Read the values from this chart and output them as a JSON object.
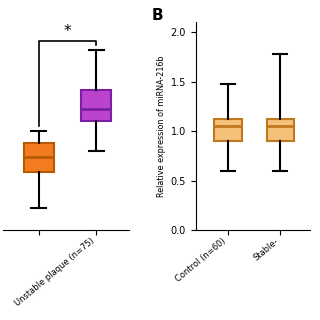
{
  "panel_A": {
    "boxes": [
      {
        "label": "",
        "q1": 0.68,
        "median": 0.82,
        "q3": 0.96,
        "whisker_low": 0.32,
        "whisker_high": 1.08,
        "color": "#F47C20",
        "edge_color": "#B85A00"
      },
      {
        "label": "Unstable plaque (n=75)",
        "q1": 1.18,
        "median": 1.3,
        "q3": 1.48,
        "whisker_low": 0.88,
        "whisker_high": 1.88,
        "color": "#BB44CC",
        "edge_color": "#7B1FA2"
      }
    ],
    "significance": "*",
    "ylim": [
      0.1,
      2.15
    ],
    "yticks": []
  },
  "panel_B": {
    "ylabel": "Relative expression of miRNA-216b",
    "boxes": [
      {
        "label": "Control (n=60)",
        "q1": 0.9,
        "median": 1.05,
        "q3": 1.12,
        "whisker_low": 0.6,
        "whisker_high": 1.48,
        "color": "#F5C07A",
        "edge_color": "#C07820"
      },
      {
        "label": "Stable-",
        "q1": 0.9,
        "median": 1.05,
        "q3": 1.12,
        "whisker_low": 0.6,
        "whisker_high": 1.78,
        "color": "#F5C07A",
        "edge_color": "#C07820"
      }
    ],
    "ylim": [
      0.0,
      2.1
    ],
    "yticks": [
      0.0,
      0.5,
      1.0,
      1.5,
      2.0
    ]
  },
  "background_color": "#FFFFFF",
  "panel_B_label": "B"
}
